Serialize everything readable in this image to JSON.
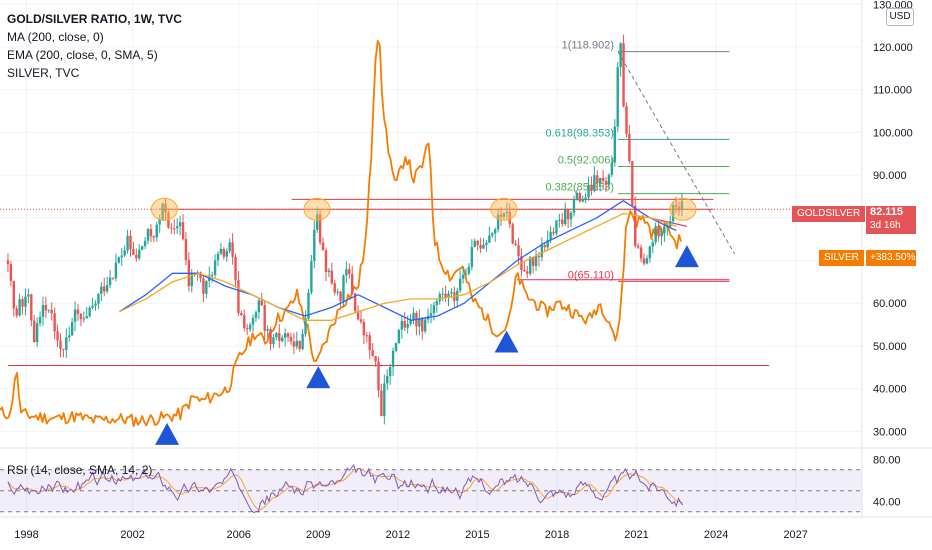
{
  "legend": {
    "title": "GOLD/SILVER RATIO, 1W, TVC",
    "ma": "MA (200, close, 0)",
    "ema": "EMA (200, close, 0, SMA, 5)",
    "overlay": "SILVER, TVC"
  },
  "currency": "USD",
  "rsi_label": "RSI (14, close, SMA, 14, 2)",
  "tags": {
    "goldsilver_name": "GOLDSILVER",
    "goldsilver_value": "82.115",
    "goldsilver_countdown": "3d 16h",
    "silver_name": "SILVER",
    "silver_value": "+383.50%"
  },
  "colors": {
    "ratio_up": "#26a69a",
    "ratio_down": "#ef5350",
    "silver": "#f57c00",
    "ma": "#2962ff",
    "ema": "#f7a823",
    "fib": "#26a69a",
    "resistance": "#e53935",
    "arrows": "#1e56d6",
    "rsi": "#7e57c2",
    "rsi_signal": "#f7a823",
    "goldsilver_tag": "#e35557",
    "silver_tag": "#f57c00"
  },
  "chart_data": {
    "type": "line",
    "x_axis": {
      "ticks": [
        "1998",
        "2002",
        "2006",
        "2009",
        "2012",
        "2015",
        "2018",
        "2021",
        "2024",
        "2027"
      ],
      "range": [
        1997.0,
        2029.5
      ]
    },
    "y_axis": {
      "ticks": [
        "130.000",
        "120.000",
        "110.000",
        "100.000",
        "90.000",
        "80.000",
        "70.000",
        "60.000",
        "50.000",
        "40.000",
        "30.000"
      ],
      "range": [
        27.5,
        131
      ]
    },
    "series": [
      {
        "role": "gold-silver ratio (candles)",
        "points": [
          [
            1997.3,
            70
          ],
          [
            1997.6,
            57
          ],
          [
            1998.0,
            63
          ],
          [
            1998.3,
            52
          ],
          [
            1998.6,
            61
          ],
          [
            1999.0,
            56
          ],
          [
            1999.4,
            49
          ],
          [
            1999.8,
            57
          ],
          [
            2000.2,
            55
          ],
          [
            2000.6,
            60
          ],
          [
            2001.0,
            65
          ],
          [
            2001.4,
            69
          ],
          [
            2001.8,
            74
          ],
          [
            2002.1,
            70
          ],
          [
            2002.5,
            75
          ],
          [
            2002.9,
            77
          ],
          [
            2003.2,
            83
          ],
          [
            2003.5,
            75
          ],
          [
            2003.8,
            80
          ],
          [
            2004.1,
            64
          ],
          [
            2004.4,
            68
          ],
          [
            2004.7,
            62
          ],
          [
            2005.0,
            68
          ],
          [
            2005.3,
            71
          ],
          [
            2005.7,
            73
          ],
          [
            2006.0,
            58
          ],
          [
            2006.4,
            53
          ],
          [
            2006.8,
            60
          ],
          [
            2007.2,
            50
          ],
          [
            2007.6,
            52
          ],
          [
            2008.0,
            53
          ],
          [
            2008.3,
            48
          ],
          [
            2008.6,
            62
          ],
          [
            2008.8,
            76
          ],
          [
            2008.95,
            83
          ],
          [
            2009.1,
            74
          ],
          [
            2009.4,
            66
          ],
          [
            2009.8,
            61
          ],
          [
            2010.1,
            68
          ],
          [
            2010.5,
            56
          ],
          [
            2010.9,
            50
          ],
          [
            2011.2,
            44
          ],
          [
            2011.35,
            34
          ],
          [
            2011.5,
            40
          ],
          [
            2011.8,
            50
          ],
          [
            2012.1,
            54
          ],
          [
            2012.5,
            57
          ],
          [
            2012.9,
            55
          ],
          [
            2013.3,
            59
          ],
          [
            2013.7,
            62
          ],
          [
            2014.1,
            61
          ],
          [
            2014.5,
            68
          ],
          [
            2014.9,
            73
          ],
          [
            2015.3,
            75
          ],
          [
            2015.7,
            78
          ],
          [
            2016.0,
            82
          ],
          [
            2016.3,
            76
          ],
          [
            2016.7,
            68
          ],
          [
            2017.1,
            70
          ],
          [
            2017.5,
            74
          ],
          [
            2017.9,
            77
          ],
          [
            2018.3,
            80
          ],
          [
            2018.7,
            84
          ],
          [
            2019.1,
            85
          ],
          [
            2019.5,
            89
          ],
          [
            2019.9,
            87
          ],
          [
            2020.1,
            92
          ],
          [
            2020.25,
            112
          ],
          [
            2020.35,
            125
          ],
          [
            2020.5,
            108
          ],
          [
            2020.7,
            95
          ],
          [
            2020.85,
            80
          ],
          [
            2021.0,
            72
          ],
          [
            2021.3,
            68
          ],
          [
            2021.6,
            75
          ],
          [
            2021.9,
            78
          ],
          [
            2022.2,
            79
          ],
          [
            2022.5,
            83
          ],
          [
            2022.75,
            82
          ]
        ]
      },
      {
        "role": "SILVER (orange)",
        "points": [
          [
            1997.0,
            34.5
          ],
          [
            1997.4,
            34
          ],
          [
            1997.6,
            45
          ],
          [
            1997.8,
            34
          ],
          [
            1998.3,
            33.5
          ],
          [
            1999.0,
            33
          ],
          [
            1999.8,
            33.5
          ],
          [
            2000.6,
            32.5
          ],
          [
            2001.4,
            33
          ],
          [
            2002.2,
            32.5
          ],
          [
            2003.0,
            33
          ],
          [
            2003.8,
            34
          ],
          [
            2004.3,
            38
          ],
          [
            2004.6,
            37
          ],
          [
            2005.1,
            38.5
          ],
          [
            2005.6,
            40
          ],
          [
            2006.0,
            47
          ],
          [
            2006.3,
            50
          ],
          [
            2006.6,
            53
          ],
          [
            2007.0,
            51
          ],
          [
            2007.4,
            56
          ],
          [
            2007.8,
            58
          ],
          [
            2008.2,
            62
          ],
          [
            2008.6,
            54
          ],
          [
            2008.9,
            45
          ],
          [
            2009.2,
            50
          ],
          [
            2009.6,
            56
          ],
          [
            2009.9,
            60
          ],
          [
            2010.2,
            62
          ],
          [
            2010.5,
            64
          ],
          [
            2010.8,
            75
          ],
          [
            2011.0,
            95
          ],
          [
            2011.15,
            118
          ],
          [
            2011.3,
            125
          ],
          [
            2011.4,
            108
          ],
          [
            2011.6,
            98
          ],
          [
            2011.9,
            87
          ],
          [
            2012.3,
            95
          ],
          [
            2012.6,
            89
          ],
          [
            2012.9,
            92
          ],
          [
            2013.2,
            98
          ],
          [
            2013.35,
            76
          ],
          [
            2013.6,
            70
          ],
          [
            2014.0,
            66
          ],
          [
            2014.4,
            69
          ],
          [
            2014.8,
            61
          ],
          [
            2015.2,
            58
          ],
          [
            2015.6,
            54
          ],
          [
            2015.9,
            53
          ],
          [
            2016.2,
            56
          ],
          [
            2016.5,
            67
          ],
          [
            2016.8,
            62
          ],
          [
            2017.2,
            60
          ],
          [
            2017.6,
            58
          ],
          [
            2018.0,
            60
          ],
          [
            2018.4,
            59
          ],
          [
            2018.8,
            57
          ],
          [
            2019.2,
            56
          ],
          [
            2019.6,
            60
          ],
          [
            2019.9,
            57
          ],
          [
            2020.15,
            53
          ],
          [
            2020.25,
            50
          ],
          [
            2020.45,
            63
          ],
          [
            2020.6,
            77
          ],
          [
            2020.75,
            82
          ],
          [
            2021.0,
            79
          ],
          [
            2021.3,
            80
          ],
          [
            2021.6,
            76
          ],
          [
            2021.9,
            77
          ],
          [
            2022.2,
            78
          ],
          [
            2022.45,
            74
          ],
          [
            2022.7,
            75
          ]
        ]
      },
      {
        "role": "MA 200 (blue)",
        "points": [
          [
            2001.5,
            58
          ],
          [
            2002.5,
            62
          ],
          [
            2003.5,
            67
          ],
          [
            2004.5,
            67
          ],
          [
            2005.5,
            64
          ],
          [
            2006.5,
            62
          ],
          [
            2007.5,
            59
          ],
          [
            2008.5,
            57
          ],
          [
            2009.5,
            59
          ],
          [
            2010.5,
            62
          ],
          [
            2011.5,
            59
          ],
          [
            2012.5,
            56
          ],
          [
            2013.5,
            57
          ],
          [
            2014.5,
            60
          ],
          [
            2015.5,
            65
          ],
          [
            2016.5,
            70
          ],
          [
            2017.5,
            74
          ],
          [
            2018.5,
            77
          ],
          [
            2019.5,
            80
          ],
          [
            2020.5,
            84
          ],
          [
            2021.5,
            80
          ],
          [
            2022.5,
            77
          ]
        ]
      },
      {
        "role": "EMA 200 (light orange)",
        "points": [
          [
            2001.5,
            58
          ],
          [
            2002.5,
            61
          ],
          [
            2003.5,
            65
          ],
          [
            2004.5,
            67
          ],
          [
            2005.5,
            65
          ],
          [
            2006.5,
            62
          ],
          [
            2007.5,
            59
          ],
          [
            2008.5,
            56
          ],
          [
            2009.5,
            56
          ],
          [
            2010.5,
            58
          ],
          [
            2011.5,
            60
          ],
          [
            2012.5,
            61
          ],
          [
            2013.5,
            61
          ],
          [
            2014.5,
            62
          ],
          [
            2015.5,
            65
          ],
          [
            2016.5,
            69
          ],
          [
            2017.5,
            72
          ],
          [
            2018.5,
            75
          ],
          [
            2019.5,
            78
          ],
          [
            2020.5,
            81
          ],
          [
            2021.5,
            80
          ],
          [
            2022.5,
            78
          ]
        ]
      }
    ],
    "fibonacci": [
      {
        "label": "1(118.902)",
        "value": 118.902
      },
      {
        "label": "0.618(98.353)",
        "value": 98.353
      },
      {
        "label": "0.5(92.006)",
        "value": 92.006
      },
      {
        "label": "0.382(85.653)",
        "value": 85.653
      },
      {
        "label": "0(65.110)",
        "value": 65.11
      }
    ],
    "horizontal_levels": [
      82.0,
      45.4,
      65.5
    ],
    "highlighted_peaks_years": [
      2003.2,
      2008.95,
      2016.0,
      2022.75
    ],
    "support_arrows_years": [
      2003.3,
      2009.0,
      2016.1,
      2022.9
    ],
    "rsi": {
      "range": [
        25,
        85
      ],
      "ticks": [
        "80.00",
        "40.00"
      ],
      "band": [
        30,
        70
      ]
    }
  }
}
